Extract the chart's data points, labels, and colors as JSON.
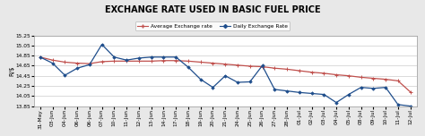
{
  "title": "EXCHANGE RATE USED IN BASIC FUEL PRICE",
  "ylabel": "R/$",
  "x_labels": [
    "31-May",
    "03-Jun",
    "04-Jun",
    "06-Jun",
    "06-Jun",
    "07-Jun",
    "10-Jun",
    "11-Jun",
    "12-Jun",
    "13-Jun",
    "14-Jun",
    "17-Jun",
    "18-Jun",
    "19-Jun",
    "20-Jun",
    "21-Jun",
    "24-Jun",
    "25-Jun",
    "26-Jun",
    "27-Jun",
    "28-Jun",
    "01-Jul",
    "02-Jul",
    "03-Jul",
    "04-Jul",
    "05-Jul",
    "08-Jul",
    "09-Jul",
    "10-Jul",
    "11-Jul",
    "12-Jul"
  ],
  "daily_values": [
    14.82,
    14.7,
    14.46,
    14.6,
    14.67,
    15.07,
    14.82,
    14.76,
    14.8,
    14.82,
    14.82,
    14.82,
    14.62,
    14.38,
    14.22,
    14.45,
    14.32,
    14.33,
    14.65,
    14.18,
    14.15,
    14.12,
    14.1,
    14.08,
    13.92,
    14.08,
    14.22,
    14.2,
    14.22,
    13.88,
    13.85
  ],
  "avg_values": [
    14.82,
    14.76,
    14.72,
    14.7,
    14.69,
    14.73,
    14.74,
    14.74,
    14.74,
    14.74,
    14.75,
    14.75,
    14.74,
    14.72,
    14.7,
    14.68,
    14.66,
    14.64,
    14.63,
    14.6,
    14.58,
    14.55,
    14.52,
    14.5,
    14.47,
    14.45,
    14.42,
    14.4,
    14.38,
    14.35,
    14.13
  ],
  "daily_color": "#1F4E8C",
  "avg_color": "#C0504D",
  "bg_color": "#E8E8E8",
  "plot_bg_color": "#FFFFFF",
  "grid_color": "#CCCCCC",
  "ylim_min": 13.85,
  "ylim_max": 15.25,
  "yticks": [
    13.85,
    14.05,
    14.25,
    14.45,
    14.65,
    14.85,
    15.05,
    15.25
  ],
  "legend_avg": "Average Exchange rate",
  "legend_daily": "Daily Exchange Rate",
  "title_fontsize": 7,
  "label_fontsize": 5,
  "tick_fontsize": 4.2
}
